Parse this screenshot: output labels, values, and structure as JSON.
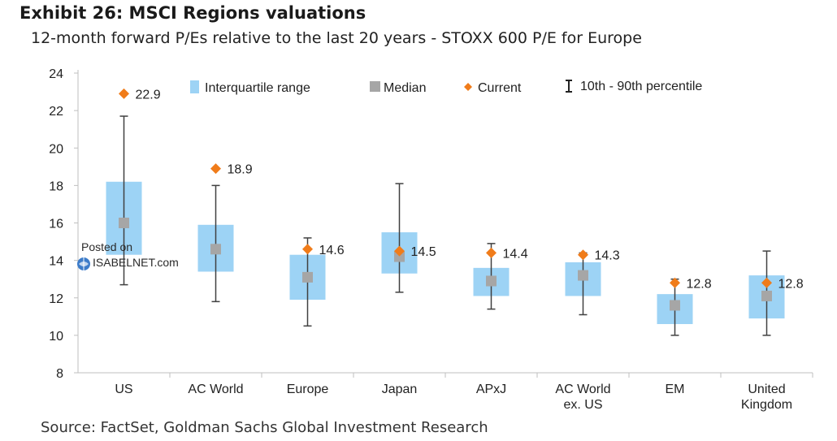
{
  "header": {
    "title": "Exhibit 26: MSCI Regions valuations",
    "subtitle": "12-month forward P/Es relative to the last 20 years - STOXX 600 P/E for Europe"
  },
  "footer": {
    "source": "Source: FactSet, Goldman Sachs Global Investment Research"
  },
  "watermark": {
    "line1": "Posted on",
    "line2": "ISABELNET.com"
  },
  "colors": {
    "iqr": "#9DD3F5",
    "median": "#A6A6A6",
    "current": "#F07C1A",
    "whisker": "#404040",
    "axis": "#BFBFBF"
  },
  "chart_data": {
    "type": "box",
    "title": "Exhibit 26: MSCI Regions valuations",
    "subtitle": "12-month forward P/Es relative to the last 20 years - STOXX 600 P/E for Europe",
    "xlabel": "",
    "ylabel": "",
    "ylim": [
      8,
      24
    ],
    "yticks": [
      8,
      10,
      12,
      14,
      16,
      18,
      20,
      22,
      24
    ],
    "grid": false,
    "legend_position": "top",
    "legend": [
      {
        "key": "iqr",
        "label": "Interquartile range"
      },
      {
        "key": "median",
        "label": "Median"
      },
      {
        "key": "current",
        "label": "Current"
      },
      {
        "key": "whisker",
        "label": "10th - 90th percentile"
      }
    ],
    "categories": [
      {
        "label": [
          "US"
        ],
        "p10": 12.7,
        "p90": 21.7,
        "q1": 14.3,
        "q3": 18.2,
        "median": 16.0,
        "current": 22.9,
        "current_label": "22.9"
      },
      {
        "label": [
          "AC World"
        ],
        "p10": 11.8,
        "p90": 18.0,
        "q1": 13.4,
        "q3": 15.9,
        "median": 14.6,
        "current": 18.9,
        "current_label": "18.9"
      },
      {
        "label": [
          "Europe"
        ],
        "p10": 10.5,
        "p90": 15.2,
        "q1": 11.9,
        "q3": 14.3,
        "median": 13.1,
        "current": 14.6,
        "current_label": "14.6"
      },
      {
        "label": [
          "Japan"
        ],
        "p10": 12.3,
        "p90": 18.1,
        "q1": 13.3,
        "q3": 15.5,
        "median": 14.2,
        "current": 14.5,
        "current_label": "14.5"
      },
      {
        "label": [
          "APxJ"
        ],
        "p10": 11.4,
        "p90": 14.9,
        "q1": 12.1,
        "q3": 13.6,
        "median": 12.9,
        "current": 14.4,
        "current_label": "14.4"
      },
      {
        "label": [
          "AC World",
          "ex. US"
        ],
        "p10": 11.1,
        "p90": 14.4,
        "q1": 12.1,
        "q3": 13.9,
        "median": 13.2,
        "current": 14.3,
        "current_label": "14.3"
      },
      {
        "label": [
          "EM"
        ],
        "p10": 10.0,
        "p90": 13.0,
        "q1": 10.6,
        "q3": 12.2,
        "median": 11.6,
        "current": 12.8,
        "current_label": "12.8"
      },
      {
        "label": [
          "United",
          "Kingdom"
        ],
        "p10": 10.0,
        "p90": 14.5,
        "q1": 10.9,
        "q3": 13.2,
        "median": 12.1,
        "current": 12.8,
        "current_label": "12.8"
      }
    ]
  }
}
